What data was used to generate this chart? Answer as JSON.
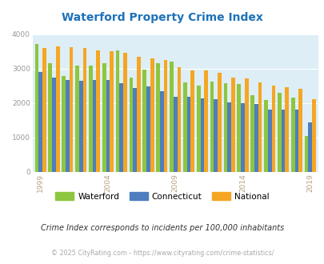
{
  "title": "Waterford Property Crime Index",
  "title_color": "#1e72b8",
  "years": [
    1999,
    2000,
    2001,
    2002,
    2003,
    2004,
    2005,
    2006,
    2007,
    2008,
    2009,
    2010,
    2011,
    2012,
    2013,
    2014,
    2015,
    2016,
    2017,
    2018,
    2019
  ],
  "waterford": [
    3720,
    3150,
    2780,
    3100,
    3080,
    3160,
    3540,
    2730,
    2980,
    3170,
    3200,
    2590,
    2500,
    2630,
    2580,
    2550,
    2220,
    2090,
    2290,
    2150,
    1040
  ],
  "connecticut": [
    2900,
    2750,
    2660,
    2650,
    2680,
    2680,
    2570,
    2430,
    2490,
    2340,
    2180,
    2170,
    2140,
    2120,
    2020,
    2000,
    1960,
    1800,
    1800,
    1800,
    1430
  ],
  "national": [
    3600,
    3650,
    3620,
    3610,
    3530,
    3500,
    3470,
    3350,
    3300,
    3250,
    3050,
    2960,
    2940,
    2880,
    2740,
    2720,
    2600,
    2500,
    2470,
    2420,
    2100
  ],
  "waterford_color": "#8dc63f",
  "connecticut_color": "#4d7ebf",
  "national_color": "#f5a623",
  "bg_color": "#ddeef6",
  "ylim": [
    0,
    4000
  ],
  "yticks": [
    0,
    1000,
    2000,
    3000,
    4000
  ],
  "xtick_years": [
    1999,
    2004,
    2009,
    2014,
    2019
  ],
  "xtick_color": "#b8a080",
  "ytick_color": "#999999",
  "footnote1": "Crime Index corresponds to incidents per 100,000 inhabitants",
  "footnote2": "© 2025 CityRating.com - https://www.cityrating.com/crime-statistics/",
  "footnote1_color": "#333333",
  "footnote2_color": "#aaaaaa",
  "bar_width": 0.28,
  "legend_labels": [
    "Waterford",
    "Connecticut",
    "National"
  ]
}
